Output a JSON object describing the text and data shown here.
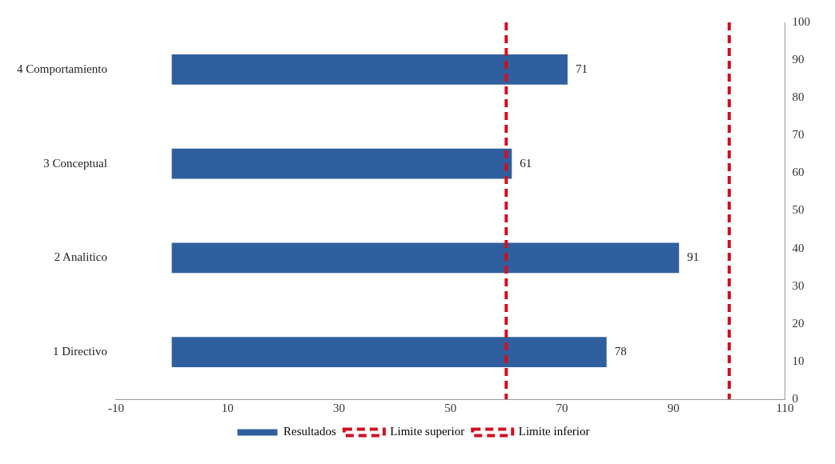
{
  "chart_data": {
    "type": "bar",
    "orientation": "horizontal",
    "categories": [
      "4 Comportamiento",
      "3 Conceptual",
      "2 Analitico",
      "1 Directivo"
    ],
    "xlim": [
      -10,
      110
    ],
    "xticks": [
      -10,
      10,
      30,
      50,
      70,
      90,
      110
    ],
    "y2lim": [
      0,
      100
    ],
    "y2ticks": [
      0,
      10,
      20,
      30,
      40,
      50,
      60,
      70,
      80,
      90,
      100
    ],
    "data_labels": true,
    "legend": "bottom",
    "grid": false,
    "series": [
      {
        "name": "Resultados",
        "color": "#2f5f9e",
        "values": [
          71,
          61,
          91,
          78
        ]
      }
    ],
    "ref_lines": [
      {
        "axis": "x",
        "value": 60,
        "label": "Limite superior",
        "color": "#d01020",
        "line_style": "dashed"
      },
      {
        "axis": "x",
        "value": 100,
        "label": "Limite inferior",
        "color": "#d01020",
        "line_style": "dashed"
      }
    ]
  }
}
